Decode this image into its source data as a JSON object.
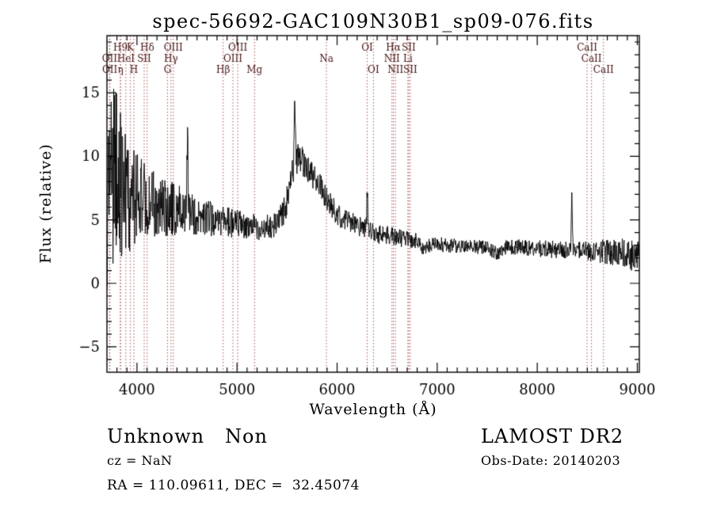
{
  "chart_data": {
    "type": "line",
    "title": "spec-56692-GAC109N30B1_sp09-076.fits",
    "xlabel": "Wavelength (Å)",
    "ylabel": "Flux (relative)",
    "xlim": [
      3700,
      9020
    ],
    "ylim": [
      -7,
      19.5
    ],
    "xticks": [
      4000,
      5000,
      6000,
      7000,
      8000,
      9000
    ],
    "x_minor_step": 100,
    "yticks": [
      -5,
      0,
      5,
      10,
      15
    ],
    "y_minor_step": 1,
    "grid": false,
    "legend": "none",
    "line_color": "#000000",
    "marker_line_color": "#a65252",
    "marker_label_color": "#441111",
    "series": [
      {
        "name": "flux",
        "synthesis": {
          "continuum": [
            [
              3700,
              -1.5
            ],
            [
              3706,
              3.0
            ],
            [
              3712,
              7.0
            ],
            [
              3760,
              8.3
            ],
            [
              3820,
              8.2
            ],
            [
              3880,
              7.4
            ],
            [
              3940,
              7.0
            ],
            [
              4000,
              6.8
            ],
            [
              4100,
              6.5
            ],
            [
              4200,
              6.2
            ],
            [
              4300,
              5.9
            ],
            [
              4400,
              5.8
            ],
            [
              4500,
              5.6
            ],
            [
              4600,
              5.3
            ],
            [
              4700,
              5.2
            ],
            [
              4800,
              4.9
            ],
            [
              4900,
              4.8
            ],
            [
              5000,
              4.7
            ],
            [
              5100,
              4.5
            ],
            [
              5200,
              4.4
            ],
            [
              5300,
              4.4
            ],
            [
              5400,
              4.6
            ],
            [
              5480,
              5.8
            ],
            [
              5540,
              8.2
            ],
            [
              5580,
              9.6
            ],
            [
              5620,
              9.9
            ],
            [
              5680,
              9.3
            ],
            [
              5750,
              8.6
            ],
            [
              5820,
              7.8
            ],
            [
              5900,
              6.6
            ],
            [
              6000,
              5.5
            ],
            [
              6100,
              4.9
            ],
            [
              6200,
              4.5
            ],
            [
              6300,
              4.2
            ],
            [
              6400,
              3.9
            ],
            [
              6500,
              3.8
            ],
            [
              6600,
              3.6
            ],
            [
              6700,
              3.5
            ],
            [
              6800,
              3.3
            ],
            [
              6870,
              2.8
            ],
            [
              6950,
              3.1
            ],
            [
              7100,
              3.0
            ],
            [
              7300,
              2.9
            ],
            [
              7500,
              2.8
            ],
            [
              7600,
              2.4
            ],
            [
              7700,
              2.9
            ],
            [
              7900,
              2.8
            ],
            [
              8100,
              2.7
            ],
            [
              8300,
              2.6
            ],
            [
              8500,
              2.6
            ],
            [
              8700,
              2.5
            ],
            [
              8900,
              2.4
            ],
            [
              9020,
              2.1
            ]
          ],
          "noise_amplitude": [
            [
              3700,
              1.5
            ],
            [
              3712,
              4.0
            ],
            [
              3725,
              7.5
            ],
            [
              3800,
              6.8
            ],
            [
              3900,
              5.0
            ],
            [
              4000,
              3.4
            ],
            [
              4100,
              2.8
            ],
            [
              4300,
              2.2
            ],
            [
              4500,
              1.8
            ],
            [
              4700,
              1.4
            ],
            [
              5000,
              1.1
            ],
            [
              5300,
              1.0
            ],
            [
              5600,
              1.2
            ],
            [
              5900,
              1.0
            ],
            [
              6200,
              0.85
            ],
            [
              6600,
              0.7
            ],
            [
              7000,
              0.6
            ],
            [
              7500,
              0.55
            ],
            [
              8000,
              0.65
            ],
            [
              8400,
              0.75
            ],
            [
              8700,
              1.0
            ],
            [
              8900,
              1.2
            ],
            [
              9020,
              1.5
            ]
          ],
          "spikes": [
            [
              4505,
              12.2,
              7
            ],
            [
              5577,
              14.4,
              7
            ],
            [
              6302,
              7.4,
              7
            ],
            [
              8345,
              7.2,
              7
            ]
          ],
          "seed": 20140203,
          "n_points": 1500
        }
      }
    ],
    "line_markers": [
      {
        "wavelength": 3727,
        "label": "OII",
        "row": 1
      },
      {
        "wavelength": 3729,
        "label": "OII",
        "row": 2
      },
      {
        "wavelength": 3835,
        "label": "H9",
        "row": 0
      },
      {
        "wavelength": 3835,
        "label": "η",
        "row": 2
      },
      {
        "wavelength": 3889,
        "label": "HeI",
        "row": 1
      },
      {
        "wavelength": 3934,
        "label": "K",
        "row": 0
      },
      {
        "wavelength": 3969,
        "label": "H",
        "row": 2
      },
      {
        "wavelength": 4072,
        "label": "SII",
        "row": 1
      },
      {
        "wavelength": 4102,
        "label": "Hδ",
        "row": 0
      },
      {
        "wavelength": 4305,
        "label": "G",
        "row": 2
      },
      {
        "wavelength": 4340,
        "label": "Hγ",
        "row": 1
      },
      {
        "wavelength": 4363,
        "label": "OIII",
        "row": 0
      },
      {
        "wavelength": 4861,
        "label": "Hβ",
        "row": 2
      },
      {
        "wavelength": 4959,
        "label": "OIII",
        "row": 1
      },
      {
        "wavelength": 5007,
        "label": "OIII",
        "row": 0
      },
      {
        "wavelength": 5175,
        "label": "Mg",
        "row": 2
      },
      {
        "wavelength": 5893,
        "label": "Na",
        "row": 1
      },
      {
        "wavelength": 6300,
        "label": "OI",
        "row": 0
      },
      {
        "wavelength": 6363,
        "label": "OI",
        "row": 2
      },
      {
        "wavelength": 6548,
        "label": "NII",
        "row": 1
      },
      {
        "wavelength": 6563,
        "label": "Hα",
        "row": 0
      },
      {
        "wavelength": 6583,
        "label": "NII",
        "row": 2
      },
      {
        "wavelength": 6707,
        "label": "Li",
        "row": 1
      },
      {
        "wavelength": 6716,
        "label": "SII",
        "row": 0
      },
      {
        "wavelength": 6731,
        "label": "SII",
        "row": 2
      },
      {
        "wavelength": 8498,
        "label": "CaII",
        "row": 0
      },
      {
        "wavelength": 8542,
        "label": "CaII",
        "row": 1
      },
      {
        "wavelength": 8662,
        "label": "CaII",
        "row": 2
      }
    ]
  },
  "annotations": {
    "classification": "Unknown   Non",
    "cz": "cz = NaN",
    "coordinates": "RA = 110.09611, DEC =  32.45074",
    "survey": "LAMOST DR2",
    "obs_date": "Obs-Date: 20140203"
  }
}
